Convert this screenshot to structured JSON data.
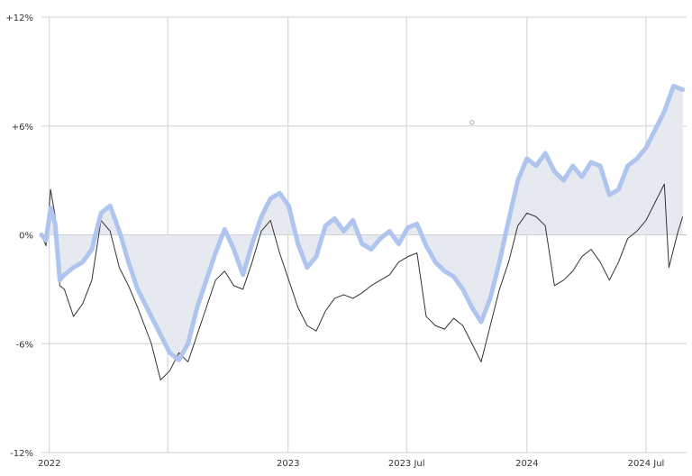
{
  "chart_data": {
    "type": "line",
    "title": "",
    "xlabel": "",
    "ylabel": "",
    "ylim": [
      -12,
      12
    ],
    "y_ticks": [
      {
        "value": 12,
        "label": "+12%"
      },
      {
        "value": 6,
        "label": "+6%"
      },
      {
        "value": 0,
        "label": "0%"
      },
      {
        "value": -6,
        "label": "-6%"
      },
      {
        "value": -12,
        "label": "-12%"
      }
    ],
    "x_range": [
      "2021-12-20",
      "2024-09-01"
    ],
    "x_ticks": [
      {
        "date": "2022-01-01",
        "label": "2022"
      },
      {
        "date": "2023-01-01",
        "label": "2023"
      },
      {
        "date": "2023-07-01",
        "label": "2023 Jul"
      },
      {
        "date": "2024-01-01",
        "label": "2024"
      },
      {
        "date": "2024-07-01",
        "label": "2024 Jul"
      }
    ],
    "x_gridlines": [
      "2022-01-01",
      "2022-07-01",
      "2023-01-01",
      "2023-07-01",
      "2024-01-01",
      "2024-07-01"
    ],
    "grid": true,
    "colors": {
      "primary_line": "#b0c4f0",
      "secondary_line": "#333333",
      "area_fill": "#e6e9f0",
      "grid": "#d0d0d0",
      "zero_line": "#bbbbbb"
    },
    "series": [
      {
        "points": [
          [
            "2021-12-20",
            0.0
          ],
          [
            "2021-12-27",
            -0.3
          ],
          [
            "2022-01-03",
            1.5
          ],
          [
            "2022-01-10",
            0.6
          ],
          [
            "2022-01-17",
            -2.5
          ],
          [
            "2022-01-24",
            -2.2
          ],
          [
            "2022-02-07",
            -1.8
          ],
          [
            "2022-02-21",
            -1.5
          ],
          [
            "2022-03-07",
            -0.8
          ],
          [
            "2022-03-21",
            1.2
          ],
          [
            "2022-04-04",
            1.6
          ],
          [
            "2022-04-18",
            0.2
          ],
          [
            "2022-05-02",
            -1.5
          ],
          [
            "2022-05-16",
            -3.0
          ],
          [
            "2022-06-06",
            -4.5
          ],
          [
            "2022-06-20",
            -5.5
          ],
          [
            "2022-07-04",
            -6.5
          ],
          [
            "2022-07-18",
            -6.9
          ],
          [
            "2022-08-01",
            -6.0
          ],
          [
            "2022-08-15",
            -4.0
          ],
          [
            "2022-08-29",
            -2.5
          ],
          [
            "2022-09-12",
            -1.0
          ],
          [
            "2022-09-26",
            0.3
          ],
          [
            "2022-10-10",
            -0.8
          ],
          [
            "2022-10-24",
            -2.2
          ],
          [
            "2022-11-07",
            -0.5
          ],
          [
            "2022-11-21",
            1.0
          ],
          [
            "2022-12-05",
            2.0
          ],
          [
            "2022-12-19",
            2.3
          ],
          [
            "2023-01-02",
            1.6
          ],
          [
            "2023-01-16",
            -0.5
          ],
          [
            "2023-01-30",
            -1.8
          ],
          [
            "2023-02-13",
            -1.2
          ],
          [
            "2023-02-27",
            0.5
          ],
          [
            "2023-03-13",
            0.9
          ],
          [
            "2023-03-27",
            0.2
          ],
          [
            "2023-04-10",
            0.8
          ],
          [
            "2023-04-24",
            -0.5
          ],
          [
            "2023-05-08",
            -0.8
          ],
          [
            "2023-05-22",
            -0.2
          ],
          [
            "2023-06-05",
            0.2
          ],
          [
            "2023-06-19",
            -0.5
          ],
          [
            "2023-07-03",
            0.4
          ],
          [
            "2023-07-17",
            0.6
          ],
          [
            "2023-07-31",
            -0.6
          ],
          [
            "2023-08-14",
            -1.5
          ],
          [
            "2023-08-28",
            -2.0
          ],
          [
            "2023-09-11",
            -2.3
          ],
          [
            "2023-09-25",
            -3.0
          ],
          [
            "2023-10-09",
            -4.0
          ],
          [
            "2023-10-23",
            -4.8
          ],
          [
            "2023-11-06",
            -3.5
          ],
          [
            "2023-11-20",
            -1.5
          ],
          [
            "2023-12-04",
            0.8
          ],
          [
            "2023-12-18",
            3.0
          ],
          [
            "2024-01-01",
            4.2
          ],
          [
            "2024-01-15",
            3.8
          ],
          [
            "2024-01-29",
            4.5
          ],
          [
            "2024-02-12",
            3.5
          ],
          [
            "2024-02-26",
            3.0
          ],
          [
            "2024-03-11",
            3.8
          ],
          [
            "2024-03-25",
            3.2
          ],
          [
            "2024-04-08",
            4.0
          ],
          [
            "2024-04-22",
            3.8
          ],
          [
            "2024-05-06",
            2.2
          ],
          [
            "2024-05-20",
            2.5
          ],
          [
            "2024-06-03",
            3.8
          ],
          [
            "2024-06-17",
            4.2
          ],
          [
            "2024-07-01",
            4.8
          ],
          [
            "2024-07-15",
            5.8
          ],
          [
            "2024-07-29",
            6.8
          ],
          [
            "2024-08-12",
            8.2
          ],
          [
            "2024-08-26",
            8.0
          ]
        ]
      },
      {
        "points": [
          [
            "2021-12-20",
            0.0
          ],
          [
            "2021-12-27",
            -0.6
          ],
          [
            "2022-01-03",
            2.5
          ],
          [
            "2022-01-10",
            1.0
          ],
          [
            "2022-01-17",
            -2.8
          ],
          [
            "2022-01-24",
            -3.0
          ],
          [
            "2022-02-07",
            -4.5
          ],
          [
            "2022-02-21",
            -3.8
          ],
          [
            "2022-03-07",
            -2.5
          ],
          [
            "2022-03-21",
            0.8
          ],
          [
            "2022-04-04",
            0.2
          ],
          [
            "2022-04-18",
            -1.8
          ],
          [
            "2022-05-02",
            -2.8
          ],
          [
            "2022-05-16",
            -4.0
          ],
          [
            "2022-06-06",
            -6.0
          ],
          [
            "2022-06-20",
            -8.0
          ],
          [
            "2022-07-04",
            -7.5
          ],
          [
            "2022-07-18",
            -6.5
          ],
          [
            "2022-08-01",
            -7.0
          ],
          [
            "2022-08-15",
            -5.5
          ],
          [
            "2022-08-29",
            -4.0
          ],
          [
            "2022-09-12",
            -2.5
          ],
          [
            "2022-09-26",
            -2.0
          ],
          [
            "2022-10-10",
            -2.8
          ],
          [
            "2022-10-24",
            -3.0
          ],
          [
            "2022-11-07",
            -1.5
          ],
          [
            "2022-11-21",
            0.2
          ],
          [
            "2022-12-05",
            0.8
          ],
          [
            "2022-12-19",
            -1.0
          ],
          [
            "2023-01-02",
            -2.5
          ],
          [
            "2023-01-16",
            -4.0
          ],
          [
            "2023-01-30",
            -5.0
          ],
          [
            "2023-02-13",
            -5.3
          ],
          [
            "2023-02-27",
            -4.2
          ],
          [
            "2023-03-13",
            -3.5
          ],
          [
            "2023-03-27",
            -3.3
          ],
          [
            "2023-04-10",
            -3.5
          ],
          [
            "2023-04-24",
            -3.2
          ],
          [
            "2023-05-08",
            -2.8
          ],
          [
            "2023-05-22",
            -2.5
          ],
          [
            "2023-06-05",
            -2.2
          ],
          [
            "2023-06-19",
            -1.5
          ],
          [
            "2023-07-03",
            -1.2
          ],
          [
            "2023-07-17",
            -1.0
          ],
          [
            "2023-07-31",
            -4.5
          ],
          [
            "2023-08-14",
            -5.0
          ],
          [
            "2023-08-28",
            -5.2
          ],
          [
            "2023-09-11",
            -4.6
          ],
          [
            "2023-09-25",
            -5.0
          ],
          [
            "2023-10-09",
            -6.0
          ],
          [
            "2023-10-23",
            -7.0
          ],
          [
            "2023-11-06",
            -5.0
          ],
          [
            "2023-11-20",
            -3.0
          ],
          [
            "2023-12-04",
            -1.5
          ],
          [
            "2023-12-18",
            0.5
          ],
          [
            "2024-01-01",
            1.2
          ],
          [
            "2024-01-15",
            1.0
          ],
          [
            "2024-01-29",
            0.5
          ],
          [
            "2024-02-12",
            -2.8
          ],
          [
            "2024-02-26",
            -2.5
          ],
          [
            "2024-03-11",
            -2.0
          ],
          [
            "2024-03-25",
            -1.2
          ],
          [
            "2024-04-08",
            -0.8
          ],
          [
            "2024-04-22",
            -1.5
          ],
          [
            "2024-05-06",
            -2.5
          ],
          [
            "2024-05-20",
            -1.5
          ],
          [
            "2024-06-03",
            -0.2
          ],
          [
            "2024-06-17",
            0.2
          ],
          [
            "2024-07-01",
            0.8
          ],
          [
            "2024-07-15",
            1.8
          ],
          [
            "2024-07-29",
            2.8
          ],
          [
            "2024-08-05",
            -1.8
          ],
          [
            "2024-08-19",
            0.2
          ],
          [
            "2024-08-26",
            1.0
          ]
        ]
      }
    ],
    "annotations": [
      {
        "date": "2023-10-09",
        "value": 6.2,
        "shape": "small-open-circle"
      }
    ]
  }
}
